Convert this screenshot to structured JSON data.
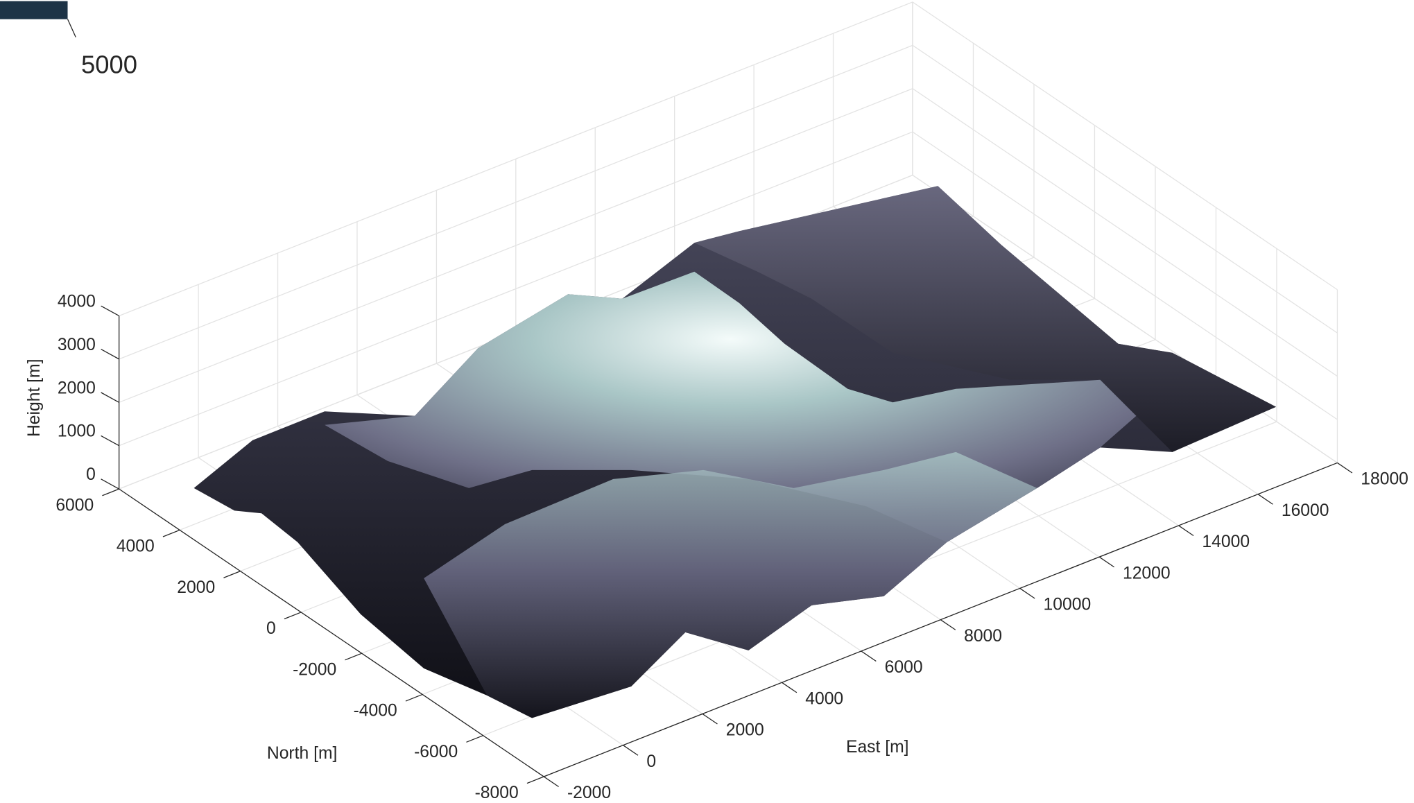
{
  "chart_data": {
    "type": "surface",
    "xlabel": "East [m]",
    "ylabel": "North [m]",
    "zlabel": "Height [m]",
    "xlim": [
      -2000,
      18000
    ],
    "xticks": [
      -2000,
      0,
      2000,
      4000,
      6000,
      8000,
      10000,
      12000,
      14000,
      16000,
      18000
    ],
    "ylim": [
      -8000,
      6000
    ],
    "yticks": [
      -8000,
      -6000,
      -4000,
      -2000,
      0,
      2000,
      4000,
      6000
    ],
    "zlim": [
      0,
      4000
    ],
    "zticks": [
      0,
      1000,
      2000,
      3000,
      4000
    ],
    "grid": true
  },
  "cropped_label": "5000"
}
